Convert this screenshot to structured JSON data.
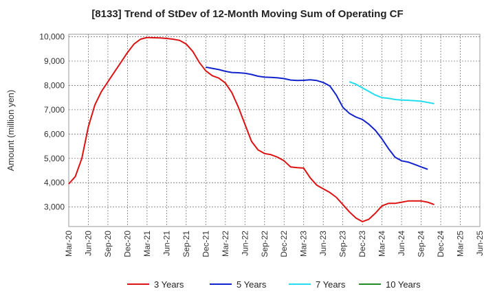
{
  "chart_data": {
    "type": "line",
    "title": "[8133]  Trend of StDev of 12-Month Moving Sum of Operating CF",
    "xlabel": "",
    "ylabel": "Amount (million yen)",
    "ylim": [
      2200,
      10100
    ],
    "yticks": [
      3000,
      4000,
      5000,
      6000,
      7000,
      8000,
      9000,
      10000
    ],
    "ytick_labels": [
      "3,000",
      "4,000",
      "5,000",
      "6,000",
      "7,000",
      "8,000",
      "9,000",
      "10,000"
    ],
    "x_ticks": [
      "Mar-20",
      "Jun-20",
      "Sep-20",
      "Dec-20",
      "Mar-21",
      "Jun-21",
      "Sep-21",
      "Dec-21",
      "Mar-22",
      "Jun-22",
      "Sep-22",
      "Dec-22",
      "Mar-23",
      "Jun-23",
      "Sep-23",
      "Dec-23",
      "Mar-24",
      "Jun-24",
      "Sep-24",
      "Dec-24",
      "Mar-25",
      "Jun-25"
    ],
    "grid": true,
    "legend_position": "bottom",
    "series": [
      {
        "name": "3 Years",
        "color": "#dd1111",
        "start_index": 0,
        "values": [
          3950,
          4250,
          5000,
          6300,
          7200,
          7750,
          8150,
          8550,
          8950,
          9350,
          9700,
          9900,
          9970,
          9960,
          9950,
          9930,
          9900,
          9850,
          9700,
          9400,
          8950,
          8600,
          8400,
          8300,
          8100,
          7700,
          7100,
          6400,
          5700,
          5350,
          5200,
          5150,
          5050,
          4900,
          4650,
          4620,
          4600,
          4200,
          3900,
          3750,
          3600,
          3400,
          3100,
          2800,
          2550,
          2400,
          2500,
          2750,
          3050,
          3150,
          3150,
          3200,
          3250,
          3250,
          3250,
          3200,
          3100
        ]
      },
      {
        "name": "5 Years",
        "color": "#1122cc",
        "start_index": 21,
        "values": [
          8750,
          8700,
          8650,
          8580,
          8530,
          8520,
          8500,
          8450,
          8380,
          8340,
          8330,
          8310,
          8280,
          8220,
          8200,
          8210,
          8230,
          8200,
          8120,
          7980,
          7600,
          7100,
          6850,
          6700,
          6600,
          6400,
          6150,
          5800,
          5400,
          5050,
          4900,
          4850,
          4750,
          4650,
          4550
        ]
      },
      {
        "name": "7 Years",
        "color": "#22ddee",
        "start_index": 43,
        "values": [
          8150,
          8050,
          7900,
          7750,
          7600,
          7500,
          7470,
          7420,
          7400,
          7390,
          7370,
          7350,
          7300,
          7250
        ]
      },
      {
        "name": "10 Years",
        "color": "#228822",
        "start_index": 0,
        "values": []
      }
    ]
  }
}
